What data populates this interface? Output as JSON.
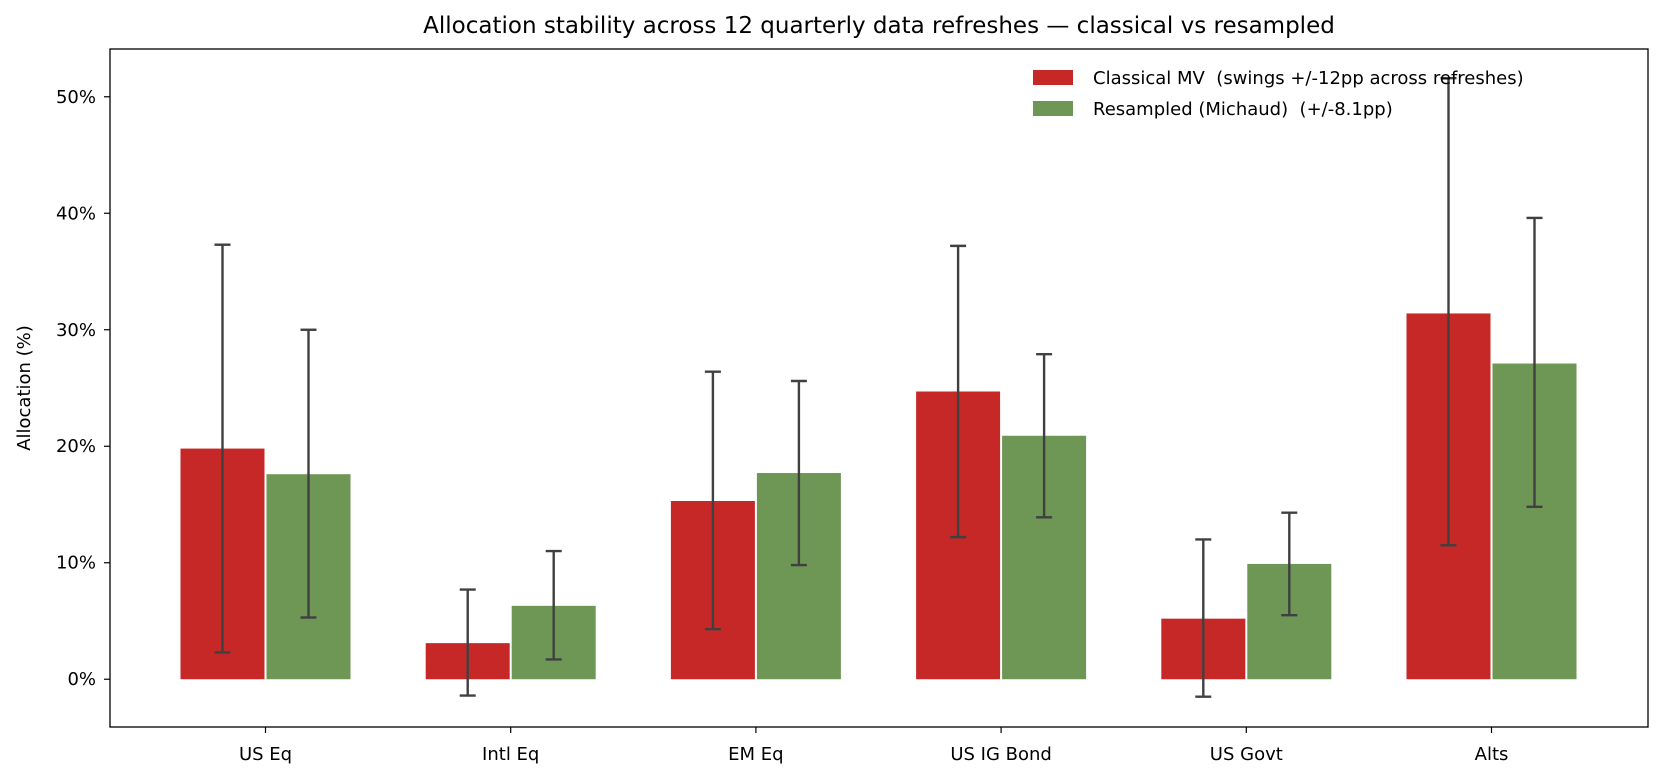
{
  "chart_data": {
    "type": "bar",
    "title": "Allocation stability across 12 quarterly data refreshes — classical vs resampled",
    "xlabel": "",
    "ylabel": "Allocation  (%)",
    "ylim": [
      -4.1,
      54.1
    ],
    "yticks": [
      0,
      10,
      20,
      30,
      40,
      50
    ],
    "ytick_labels": [
      "0%",
      "10%",
      "20%",
      "30%",
      "40%",
      "50%"
    ],
    "grid": false,
    "legend_position": "top-right",
    "categories": [
      "US Eq",
      "Intl Eq",
      "EM Eq",
      "US IG Bond",
      "US Govt",
      "Alts"
    ],
    "series": [
      {
        "name": "Classical MV  (swings +/-12pp across refreshes)",
        "color": "#c62828",
        "values": [
          19.8,
          3.1,
          15.3,
          24.7,
          5.2,
          31.4
        ],
        "err_low": [
          2.3,
          -1.4,
          4.3,
          12.2,
          -1.5,
          11.5
        ],
        "err_high": [
          37.3,
          7.7,
          26.4,
          37.2,
          12.0,
          51.6
        ]
      },
      {
        "name": "Resampled (Michaud)  (+/-8.1pp)",
        "color": "#6e9654",
        "values": [
          17.6,
          6.3,
          17.7,
          20.9,
          9.9,
          27.1
        ],
        "err_low": [
          5.3,
          1.7,
          9.8,
          13.9,
          5.5,
          14.8
        ],
        "err_high": [
          30.0,
          11.0,
          25.6,
          27.9,
          14.3,
          39.6
        ]
      }
    ]
  }
}
